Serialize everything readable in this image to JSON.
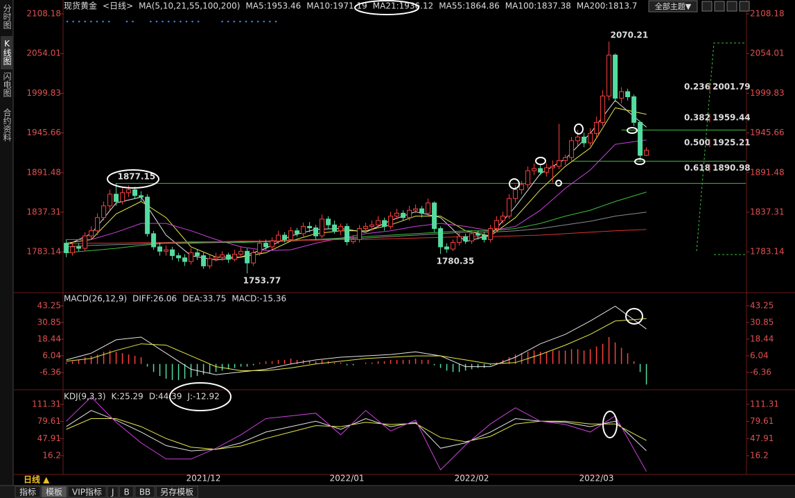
{
  "sidebar": [
    "分时图",
    "K线图",
    "闪电图",
    "合约资料"
  ],
  "toolbar": {
    "theme": "全部主题▼"
  },
  "chart_data": [
    {
      "type": "candlestick",
      "title": "现货黄金",
      "subtitle": "<日线>",
      "indicator": "MA(5,10,21,55,100,200)",
      "up_color": "#ff4040",
      "down_color": "#54dca0",
      "xlim": [
        -0.4,
        108.6
      ],
      "ylim": [
        1729.3,
        2113.9
      ],
      "yticks": [
        2108.18,
        2054.01,
        1999.83,
        1945.66,
        1891.48,
        1837.31,
        1783.14
      ],
      "open": [
        1795,
        1782,
        1790,
        1788,
        1805,
        1812,
        1830,
        1846,
        1862,
        1852,
        1864,
        1868,
        1860,
        1858,
        1808,
        1790,
        1784,
        1786,
        1778,
        1775,
        1770,
        1782,
        1778,
        1764,
        1774,
        1776,
        1779,
        1773,
        1780,
        1784,
        1768,
        1782,
        1795,
        1790,
        1798,
        1806,
        1800,
        1812,
        1808,
        1818,
        1816,
        1805,
        1828,
        1820,
        1812,
        1818,
        1797,
        1800,
        1815,
        1818,
        1820,
        1826,
        1818,
        1832,
        1836,
        1830,
        1840,
        1842,
        1836,
        1850,
        1815,
        1790,
        1787,
        1796,
        1804,
        1798,
        1808,
        1806,
        1800,
        1815,
        1826,
        1832,
        1856,
        1868,
        1875,
        1894,
        1897,
        1892,
        1898,
        1900,
        1908,
        1912,
        1935,
        1940,
        1932,
        1945,
        1960,
        1996,
        2052,
        1993,
        2002,
        1995,
        1960,
        1915
      ],
      "high": [
        1800,
        1796,
        1795,
        1810,
        1818,
        1836,
        1852,
        1868,
        1877.15,
        1870,
        1874,
        1872,
        1866,
        1862,
        1812,
        1796,
        1792,
        1790,
        1782,
        1780,
        1788,
        1786,
        1782,
        1780,
        1782,
        1784,
        1782,
        1786,
        1790,
        1788,
        1786,
        1800,
        1800,
        1803,
        1812,
        1810,
        1817,
        1816,
        1823,
        1824,
        1820,
        1834,
        1832,
        1826,
        1822,
        1822,
        1806,
        1820,
        1823,
        1826,
        1832,
        1830,
        1838,
        1842,
        1840,
        1846,
        1848,
        1846,
        1856,
        1852,
        1818,
        1795,
        1800,
        1810,
        1808,
        1813,
        1812,
        1810,
        1820,
        1832,
        1838,
        1862,
        1874,
        1880,
        1900,
        1904,
        1902,
        1904,
        1908,
        1958,
        1916,
        1940,
        1950,
        1946,
        1952,
        1968,
        2004,
        2070.21,
        2054,
        2008,
        2006,
        1998,
        1962,
        1926
      ],
      "low": [
        1776,
        1778,
        1784,
        1784,
        1800,
        1806,
        1826,
        1840,
        1846,
        1848,
        1858,
        1855,
        1852,
        1804,
        1786,
        1778,
        1778,
        1772,
        1770,
        1764,
        1766,
        1772,
        1760,
        1760,
        1770,
        1771,
        1768,
        1770,
        1776,
        1753.77,
        1764,
        1778,
        1786,
        1786,
        1794,
        1796,
        1798,
        1804,
        1804,
        1810,
        1800,
        1802,
        1815,
        1808,
        1806,
        1792,
        1794,
        1796,
        1810,
        1812,
        1816,
        1812,
        1814,
        1828,
        1826,
        1826,
        1836,
        1830,
        1832,
        1810,
        1780.35,
        1782,
        1784,
        1792,
        1794,
        1794,
        1800,
        1796,
        1796,
        1810,
        1822,
        1828,
        1850,
        1862,
        1870,
        1888,
        1888,
        1886,
        1878,
        1896,
        1902,
        1908,
        1928,
        1926,
        1928,
        1940,
        1955,
        1990,
        1988,
        1986,
        1990,
        1955,
        1908,
        1914
      ],
      "close": [
        1782,
        1790,
        1788,
        1805,
        1812,
        1830,
        1846,
        1862,
        1852,
        1864,
        1868,
        1860,
        1858,
        1808,
        1790,
        1784,
        1786,
        1778,
        1775,
        1770,
        1782,
        1778,
        1764,
        1774,
        1776,
        1779,
        1773,
        1780,
        1784,
        1768,
        1782,
        1795,
        1790,
        1798,
        1806,
        1800,
        1812,
        1808,
        1818,
        1816,
        1805,
        1828,
        1820,
        1812,
        1818,
        1797,
        1800,
        1815,
        1818,
        1820,
        1826,
        1818,
        1832,
        1836,
        1830,
        1840,
        1842,
        1836,
        1850,
        1815,
        1790,
        1787,
        1796,
        1804,
        1798,
        1808,
        1806,
        1800,
        1815,
        1826,
        1832,
        1856,
        1868,
        1875,
        1894,
        1897,
        1892,
        1898,
        1900,
        1908,
        1912,
        1935,
        1940,
        1932,
        1945,
        1960,
        1996,
        2052,
        1993,
        2002,
        1995,
        1960,
        1915,
        1922
      ],
      "series": [
        {
          "name": "MA5:1953.46",
          "color": "#e6e6e6",
          "x": [
            0,
            4,
            8,
            12,
            16,
            20,
            24,
            28,
            32,
            36,
            40,
            44,
            48,
            52,
            56,
            60,
            64,
            68,
            72,
            76,
            80,
            84,
            88,
            93
          ],
          "values": [
            1792,
            1808,
            1850,
            1858,
            1806,
            1778,
            1772,
            1776,
            1788,
            1805,
            1814,
            1815,
            1810,
            1826,
            1838,
            1830,
            1797,
            1806,
            1845,
            1890,
            1910,
            1945,
            1990,
            1953.46
          ]
        },
        {
          "name": "MA10:1971.19",
          "color": "#e8e84a",
          "x": [
            0,
            4,
            8,
            12,
            16,
            20,
            24,
            28,
            32,
            36,
            40,
            44,
            48,
            52,
            56,
            60,
            64,
            68,
            72,
            76,
            80,
            84,
            88,
            93
          ],
          "values": [
            1795,
            1800,
            1835,
            1852,
            1830,
            1790,
            1776,
            1776,
            1782,
            1798,
            1808,
            1812,
            1812,
            1820,
            1832,
            1832,
            1812,
            1805,
            1830,
            1868,
            1900,
            1925,
            1980,
            1971.19
          ]
        },
        {
          "name": "MA21:1936.12",
          "color": "#d040e0",
          "x": [
            0,
            4,
            8,
            12,
            16,
            20,
            24,
            28,
            32,
            36,
            40,
            44,
            48,
            52,
            56,
            60,
            64,
            68,
            72,
            76,
            80,
            84,
            88,
            93
          ],
          "values": [
            1800,
            1800,
            1810,
            1822,
            1822,
            1812,
            1800,
            1790,
            1785,
            1786,
            1795,
            1802,
            1808,
            1812,
            1818,
            1822,
            1818,
            1812,
            1818,
            1840,
            1870,
            1895,
            1930,
            1936.12
          ]
        },
        {
          "name": "MA55:1864.86",
          "color": "#3cc03c",
          "x": [
            0,
            4,
            8,
            12,
            16,
            20,
            24,
            28,
            32,
            36,
            40,
            44,
            48,
            52,
            56,
            60,
            64,
            68,
            72,
            76,
            80,
            84,
            88,
            93
          ],
          "values": [
            1782,
            1785,
            1788,
            1792,
            1795,
            1796,
            1796,
            1796,
            1797,
            1798,
            1800,
            1802,
            1804,
            1806,
            1808,
            1810,
            1812,
            1812,
            1815,
            1822,
            1832,
            1840,
            1852,
            1864.86
          ]
        },
        {
          "name": "MA100:1837.38",
          "color": "#8c8c8c",
          "x": [
            0,
            4,
            8,
            12,
            16,
            20,
            24,
            28,
            32,
            36,
            40,
            44,
            48,
            52,
            56,
            60,
            64,
            68,
            72,
            76,
            80,
            84,
            88,
            93
          ],
          "values": [
            1790,
            1792,
            1793,
            1794,
            1795,
            1795,
            1796,
            1797,
            1798,
            1799,
            1800,
            1801,
            1802,
            1804,
            1806,
            1808,
            1810,
            1810,
            1812,
            1815,
            1820,
            1825,
            1832,
            1837.38
          ]
        },
        {
          "name": "MA200:1813.7",
          "color": "#e03030",
          "x": [
            0,
            4,
            8,
            12,
            16,
            20,
            24,
            28,
            32,
            36,
            40,
            44,
            48,
            52,
            56,
            60,
            64,
            68,
            72,
            76,
            80,
            84,
            88,
            93
          ],
          "values": [
            1794,
            1795,
            1795,
            1796,
            1796,
            1797,
            1797,
            1798,
            1798,
            1799,
            1799,
            1800,
            1800,
            1801,
            1802,
            1803,
            1804,
            1804,
            1805,
            1806,
            1808,
            1810,
            1812,
            1813.7
          ]
        }
      ],
      "annotations": [
        {
          "x": 87,
          "value": 2070.21,
          "color": "#ff5050",
          "position": "above"
        },
        {
          "x": 8,
          "value": 1877.15,
          "color": "#ff5050",
          "position": "above"
        },
        {
          "x": 29,
          "value": 1753.77,
          "color": "#60e0a0",
          "position": "below"
        },
        {
          "x": 60,
          "value": 1780.35,
          "color": "#60e0a0",
          "position": "below"
        }
      ],
      "hlines": [
        {
          "x": 89,
          "value": 1949.5,
          "color": "#3cc03c"
        },
        {
          "x": 81,
          "value": 1907,
          "color": "#3cc03c"
        },
        {
          "x": 8,
          "value": 1876.7,
          "color": "#3cc03c"
        }
      ],
      "fib_levels": [
        {
          "ratio": "0.236",
          "price": 2001.79
        },
        {
          "ratio": "0.382",
          "price": 1959.44
        },
        {
          "ratio": "0.500",
          "price": 1925.21
        },
        {
          "ratio": "0.618",
          "price": 1890.98
        }
      ]
    },
    {
      "type": "macd",
      "title": "MACD(26,12,9)",
      "xlim": [
        -0.4,
        108.6
      ],
      "ylim": [
        -18.25,
        52.04
      ],
      "yticks": [
        43.25,
        30.85,
        18.44,
        6.04,
        -6.36
      ],
      "series": [
        {
          "name": "DIFF:26.06",
          "color": "#e6e6e6",
          "x": [
            0,
            4,
            8,
            12,
            16,
            20,
            24,
            28,
            32,
            36,
            40,
            44,
            48,
            52,
            56,
            60,
            64,
            68,
            72,
            76,
            80,
            84,
            88,
            93
          ],
          "values": [
            3,
            8,
            18,
            20,
            8,
            -4,
            -8,
            -6,
            -4,
            0,
            3,
            5,
            6,
            7,
            9,
            6,
            -2,
            -2,
            5,
            15,
            22,
            32,
            43,
            26.06
          ]
        },
        {
          "name": "DEA:33.75",
          "color": "#e8e84a",
          "x": [
            0,
            4,
            8,
            12,
            16,
            20,
            24,
            28,
            32,
            36,
            40,
            44,
            48,
            52,
            56,
            60,
            64,
            68,
            72,
            76,
            80,
            84,
            88,
            93
          ],
          "values": [
            2,
            4,
            10,
            15,
            14,
            6,
            -2,
            -5,
            -5,
            -3,
            0,
            2,
            4,
            5,
            6,
            6,
            3,
            0,
            1,
            7,
            14,
            22,
            32,
            33.75
          ]
        }
      ],
      "histogram": {
        "name": "MACD:-15.36",
        "name_color": "#d040e0",
        "up_color": "#ff4040",
        "down_color": "#54dca0",
        "values": [
          1,
          2,
          3,
          5,
          6,
          7,
          9,
          10,
          9,
          8,
          7,
          6,
          5,
          -2,
          -6,
          -9,
          -11,
          -12,
          -12,
          -11,
          -10,
          -9,
          -8,
          -7,
          -6,
          -5,
          -4,
          -3,
          -2,
          -2,
          -1,
          1,
          2,
          2,
          3,
          3,
          4,
          3,
          3,
          2,
          2,
          3,
          2,
          1,
          1,
          -1,
          -1,
          0,
          1,
          1,
          2,
          2,
          3,
          3,
          3,
          3,
          4,
          3,
          3,
          -1,
          -3,
          -5,
          -6,
          -6,
          -5,
          -4,
          -3,
          -3,
          -1,
          1,
          3,
          5,
          7,
          8,
          9,
          10,
          9,
          9,
          10,
          10,
          10,
          11,
          11,
          10,
          11,
          13,
          15,
          20,
          16,
          12,
          8,
          2,
          -6,
          -15.36
        ]
      }
    },
    {
      "type": "line",
      "title": "KDJ(9,3,3)",
      "xlim": [
        -0.4,
        108.6
      ],
      "ylim": [
        -18.5,
        135.7
      ],
      "yticks": [
        111.31,
        79.61,
        47.91,
        16.2
      ],
      "xticks": [
        {
          "value": 22,
          "label": "2021/12"
        },
        {
          "value": 45,
          "label": "2022/01"
        },
        {
          "value": 65,
          "label": "2022/02"
        },
        {
          "value": 85,
          "label": "2022/03"
        }
      ],
      "series": [
        {
          "name": "K:25.29",
          "color": "#e6e6e6",
          "x": [
            0,
            4,
            8,
            12,
            16,
            20,
            24,
            28,
            32,
            36,
            40,
            44,
            48,
            52,
            56,
            60,
            64,
            68,
            72,
            76,
            80,
            84,
            88,
            93
          ],
          "values": [
            70,
            100,
            82,
            60,
            35,
            25,
            28,
            40,
            60,
            70,
            80,
            65,
            85,
            70,
            78,
            30,
            40,
            60,
            85,
            80,
            78,
            70,
            80,
            25.29
          ]
        },
        {
          "name": "D:44.39",
          "color": "#e8e84a",
          "x": [
            0,
            4,
            8,
            12,
            16,
            20,
            24,
            28,
            32,
            36,
            40,
            44,
            48,
            52,
            56,
            60,
            64,
            68,
            72,
            76,
            80,
            84,
            88,
            93
          ],
          "values": [
            65,
            85,
            85,
            70,
            48,
            32,
            28,
            34,
            48,
            60,
            72,
            70,
            78,
            74,
            76,
            50,
            42,
            52,
            75,
            80,
            80,
            75,
            75,
            44.39
          ]
        },
        {
          "name": "J:-12.92",
          "color": "#d040e0",
          "x": [
            0,
            4,
            8,
            12,
            16,
            20,
            24,
            28,
            32,
            36,
            40,
            44,
            48,
            52,
            56,
            60,
            64,
            68,
            72,
            76,
            80,
            84,
            88,
            93
          ],
          "values": [
            80,
            125,
            78,
            40,
            10,
            10,
            30,
            55,
            85,
            90,
            95,
            55,
            100,
            62,
            82,
            -10,
            36,
            75,
            105,
            80,
            74,
            60,
            90,
            -12.92
          ]
        }
      ]
    }
  ],
  "footer": {
    "period": "日线 ▲",
    "tabs": [
      "指标",
      "模板",
      "VIP指标",
      "J",
      "B",
      "BB",
      "另存模板"
    ]
  }
}
